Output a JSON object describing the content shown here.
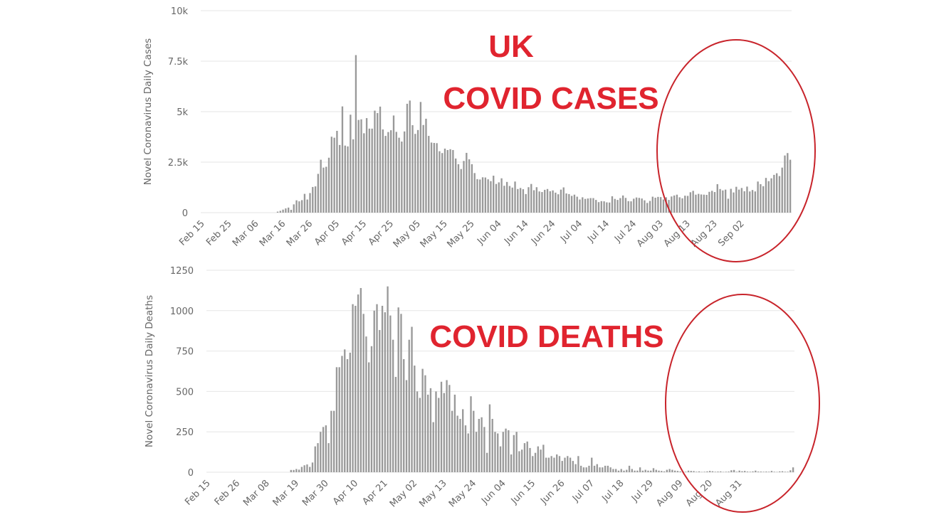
{
  "annotations": {
    "country": "UK",
    "cases_heading": "COVID CASES",
    "deaths_heading": "COVID DEATHS",
    "circle_color": "#c8242b",
    "text_color": "#e0242f"
  },
  "chart_data": [
    {
      "type": "bar",
      "title": "",
      "ylabel": "Novel Coronavirus Daily Cases",
      "xlabel": "",
      "ylim": [
        0,
        10000
      ],
      "yticks": [
        0,
        2500,
        5000,
        7500,
        10000
      ],
      "ytick_labels": [
        "0",
        "2.5k",
        "5k",
        "7.5k",
        "10k"
      ],
      "xtick_labels": [
        "Feb 15",
        "Feb 25",
        "Mar 06",
        "Mar 16",
        "Mar 26",
        "Apr 05",
        "Apr 15",
        "Apr 25",
        "May 05",
        "May 15",
        "May 25",
        "Jun 04",
        "Jun 14",
        "Jun 24",
        "Jul 04",
        "Jul 14",
        "Jul 24",
        "Aug 03",
        "Aug 13",
        "Aug 23",
        "Sep 02"
      ],
      "start_date": "Feb 15",
      "grid": true,
      "bar_color": "#999999",
      "values": [
        0,
        0,
        0,
        0,
        0,
        0,
        0,
        0,
        0,
        0,
        0,
        0,
        0,
        0,
        0,
        0,
        0,
        0,
        0,
        0,
        0,
        0,
        0,
        0,
        0,
        0,
        0,
        0,
        50,
        90,
        150,
        210,
        250,
        140,
        410,
        610,
        560,
        620,
        930,
        650,
        970,
        1270,
        1300,
        1920,
        2620,
        2230,
        2270,
        2720,
        3760,
        3710,
        4050,
        3350,
        5260,
        3320,
        3280,
        4850,
        3630,
        7800,
        4590,
        4620,
        3930,
        4680,
        4160,
        4160,
        5050,
        4930,
        5250,
        4120,
        3800,
        3990,
        4080,
        4810,
        4000,
        3710,
        3520,
        4020,
        5390,
        5550,
        4330,
        3900,
        4090,
        5480,
        4340,
        4650,
        3800,
        3470,
        3450,
        3440,
        3040,
        2950,
        3170,
        3100,
        3140,
        3100,
        2680,
        2400,
        2160,
        2560,
        2960,
        2640,
        2400,
        1960,
        1660,
        1640,
        1750,
        1740,
        1650,
        1560,
        1830,
        1420,
        1500,
        1700,
        1330,
        1520,
        1320,
        1240,
        1540,
        1170,
        1220,
        1160,
        920,
        1260,
        1420,
        1110,
        1260,
        1050,
        1020,
        1130,
        1170,
        1060,
        1100,
        990,
        910,
        1140,
        1250,
        950,
        920,
        830,
        890,
        790,
        650,
        760,
        680,
        700,
        720,
        720,
        630,
        520,
        570,
        560,
        510,
        500,
        810,
        680,
        630,
        720,
        850,
        730,
        570,
        560,
        690,
        750,
        730,
        700,
        610,
        480,
        580,
        790,
        740,
        780,
        770,
        650,
        760,
        630,
        800,
        850,
        890,
        760,
        710,
        840,
        830,
        1010,
        1080,
        890,
        930,
        900,
        890,
        880,
        1030,
        1080,
        1020,
        1410,
        1170,
        1100,
        1140,
        690,
        1180,
        1000,
        1280,
        1140,
        1220,
        1060,
        1290,
        1050,
        1120,
        1050,
        1540,
        1410,
        1310,
        1720,
        1560,
        1700,
        1870,
        1950,
        1810,
        2230,
        2830,
        2950,
        2620
      ]
    },
    {
      "type": "bar",
      "title": "",
      "ylabel": "Novel Coronavirus Daily Deaths",
      "xlabel": "",
      "ylim": [
        0,
        1250
      ],
      "yticks": [
        0,
        250,
        500,
        750,
        1000,
        1250
      ],
      "ytick_labels": [
        "0",
        "250",
        "500",
        "750",
        "1000",
        "1250"
      ],
      "xtick_labels": [
        "Feb 15",
        "Feb 26",
        "Mar 08",
        "Mar 19",
        "Mar 30",
        "Apr 10",
        "Apr 21",
        "May 02",
        "May 13",
        "May 24",
        "Jun 04",
        "Jun 15",
        "Jun 26",
        "Jul 07",
        "Jul 18",
        "Jul 29",
        "Aug 09",
        "Aug 20",
        "Aug 31"
      ],
      "start_date": "Feb 15",
      "grid": true,
      "bar_color": "#999999",
      "values": [
        0,
        0,
        0,
        0,
        0,
        0,
        0,
        0,
        0,
        0,
        0,
        0,
        0,
        0,
        0,
        0,
        0,
        0,
        0,
        0,
        0,
        0,
        0,
        0,
        0,
        0,
        0,
        0,
        0,
        0,
        0,
        14,
        14,
        20,
        16,
        33,
        43,
        48,
        33,
        60,
        160,
        180,
        250,
        280,
        290,
        180,
        380,
        380,
        650,
        650,
        720,
        760,
        700,
        740,
        1040,
        1030,
        1100,
        1140,
        980,
        840,
        680,
        780,
        1000,
        1040,
        880,
        1030,
        990,
        1150,
        970,
        820,
        590,
        1020,
        980,
        700,
        570,
        820,
        900,
        660,
        500,
        460,
        640,
        600,
        480,
        520,
        310,
        500,
        460,
        560,
        490,
        570,
        540,
        380,
        480,
        350,
        330,
        390,
        290,
        240,
        470,
        380,
        250,
        330,
        340,
        280,
        120,
        420,
        330,
        250,
        240,
        160,
        250,
        270,
        260,
        110,
        230,
        250,
        130,
        140,
        180,
        190,
        150,
        100,
        120,
        160,
        140,
        170,
        90,
        90,
        100,
        90,
        110,
        100,
        70,
        90,
        100,
        90,
        70,
        50,
        100,
        40,
        30,
        30,
        40,
        90,
        40,
        50,
        30,
        30,
        40,
        40,
        30,
        20,
        20,
        10,
        20,
        10,
        15,
        40,
        20,
        10,
        10,
        30,
        10,
        15,
        10,
        10,
        25,
        15,
        10,
        8,
        5,
        15,
        20,
        15,
        10,
        8,
        5,
        4,
        3,
        10,
        8,
        7,
        3,
        5,
        2,
        3,
        5,
        8,
        6,
        3,
        4,
        5,
        2,
        3,
        4,
        12,
        14,
        3,
        10,
        6,
        8,
        4,
        3,
        5,
        10,
        4,
        4,
        3,
        4,
        3,
        8,
        3,
        2,
        5,
        6,
        3,
        3,
        12,
        30
      ]
    }
  ]
}
